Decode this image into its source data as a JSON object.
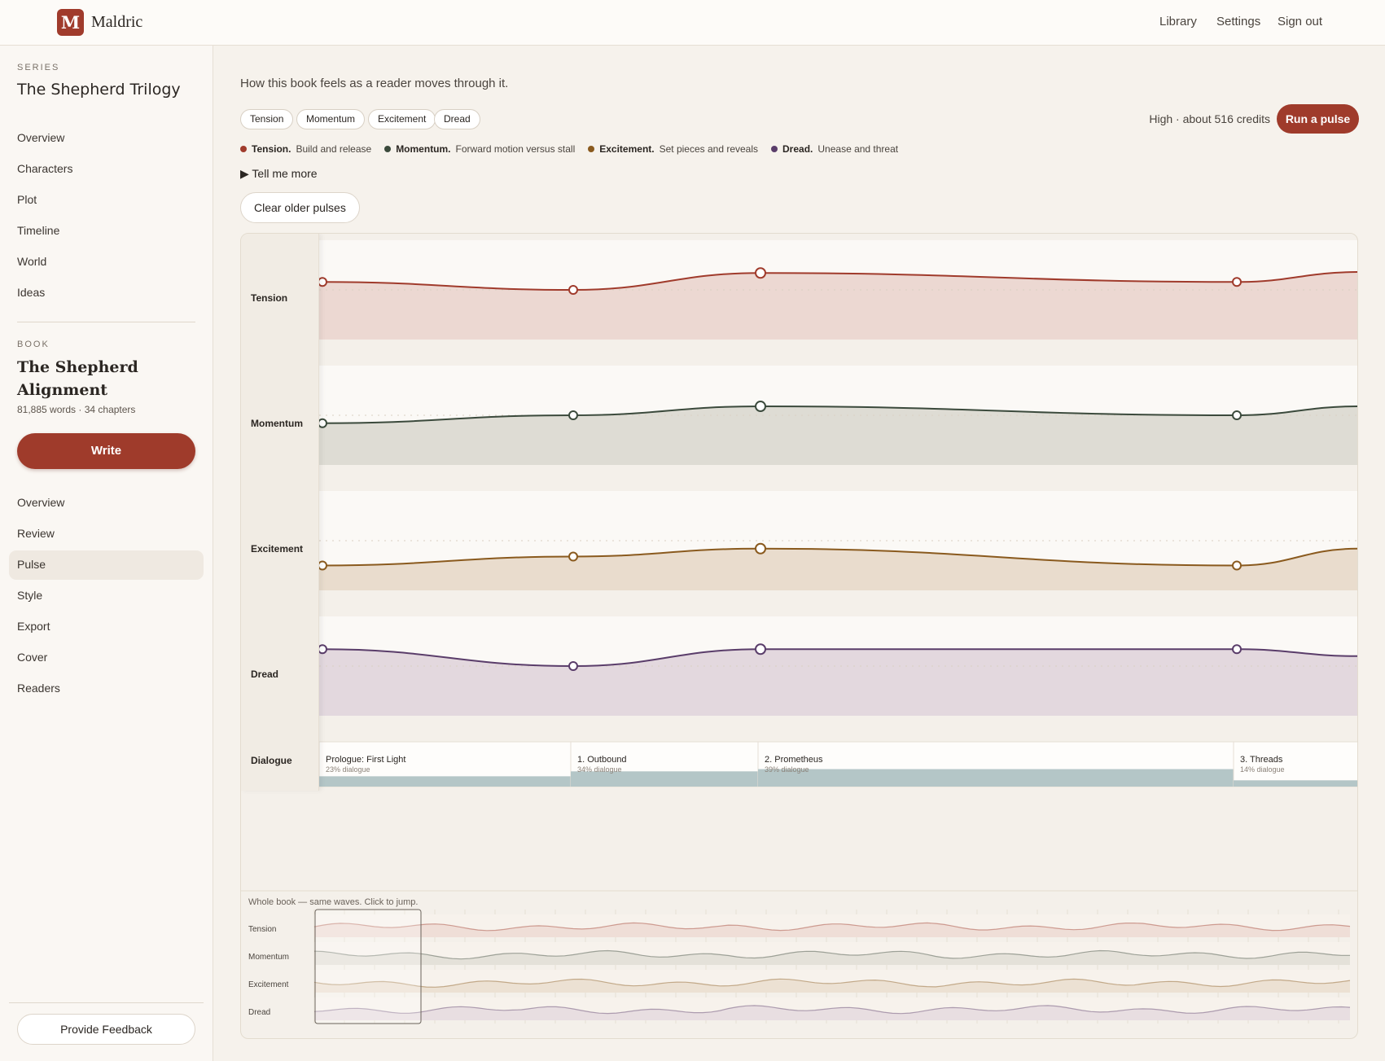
{
  "app": {
    "logo_letter": "M",
    "name": "Maldric"
  },
  "topnav": {
    "library": "Library",
    "settings": "Settings",
    "sign_out": "Sign out"
  },
  "sidebar": {
    "series_eyebrow": "SERIES",
    "series_title": "The Shepherd Trilogy",
    "series_items": [
      "Overview",
      "Characters",
      "Plot",
      "Timeline",
      "World",
      "Ideas"
    ],
    "book_eyebrow": "BOOK",
    "book_title": "The Shepherd Alignment",
    "book_meta": "81,885 words · 34 chapters",
    "write_label": "Write",
    "book_items": [
      "Overview",
      "Review",
      "Pulse",
      "Style",
      "Export",
      "Cover",
      "Readers"
    ],
    "active_item": "Pulse",
    "feedback_label": "Provide Feedback"
  },
  "main": {
    "intro": "How this book feels as a reader moves through it.",
    "chips": [
      "Tension",
      "Momentum",
      "Excitement",
      "Dread"
    ],
    "credits": "High · about 516 credits",
    "run_label": "Run a pulse",
    "legend": [
      {
        "name": "Tension.",
        "desc": "Build and release",
        "color": "#a03b2c"
      },
      {
        "name": "Momentum.",
        "desc": "Forward motion versus stall",
        "color": "#3b4a3c"
      },
      {
        "name": "Excitement.",
        "desc": "Set pieces and reveals",
        "color": "#8a5a1e"
      },
      {
        "name": "Dread.",
        "desc": "Unease and threat",
        "color": "#5a3d6a"
      }
    ],
    "tell_more": "Tell me more",
    "clear_label": "Clear older pulses"
  },
  "tracks": {
    "labels": [
      "Tension",
      "Momentum",
      "Excitement",
      "Dread",
      "Dialogue"
    ]
  },
  "chart_data": {
    "type": "area",
    "series": [
      {
        "name": "Tension",
        "color": "#a03b2c",
        "fill": "#ecd8d2",
        "values": [
          0.58,
          0.5,
          0.67,
          0.58,
          0.68
        ]
      },
      {
        "name": "Momentum",
        "color": "#3b4a3c",
        "fill": "#dedcd4",
        "values": [
          0.42,
          0.5,
          0.59,
          0.5,
          0.59
        ]
      },
      {
        "name": "Excitement",
        "color": "#8a5a1e",
        "fill": "#e9dccd",
        "values": [
          0.25,
          0.34,
          0.42,
          0.25,
          0.42
        ]
      },
      {
        "name": "Dread",
        "color": "#5a3d6a",
        "fill": "#e3d8de",
        "values": [
          0.67,
          0.5,
          0.67,
          0.67,
          0.6
        ]
      }
    ],
    "chapters": [
      {
        "title": "Prologue: First Light",
        "dialogue": "23% dialogue",
        "dialogue_pct": 23
      },
      {
        "title": "1. Outbound",
        "dialogue": "34% dialogue",
        "dialogue_pct": 34
      },
      {
        "title": "2. Prometheus",
        "dialogue": "39% dialogue",
        "dialogue_pct": 39
      },
      {
        "title": "3. Threads",
        "dialogue": "14% dialogue",
        "dialogue_pct": 14
      }
    ]
  },
  "overview": {
    "caption": "Whole book — same waves. Click to jump.",
    "labels": [
      "Tension",
      "Momentum",
      "Excitement",
      "Dread"
    ]
  }
}
